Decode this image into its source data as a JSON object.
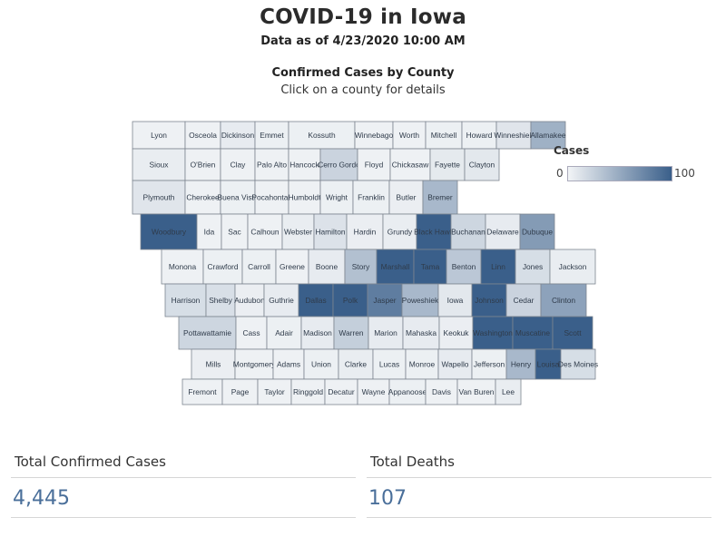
{
  "header": {
    "title": "COVID-19 in Iowa",
    "as_of": "Data as of 4/23/2020 10:00 AM"
  },
  "map": {
    "title": "Confirmed Cases by County",
    "subtitle": "Click on a county for details",
    "legend": {
      "title": "Cases",
      "min_label": "0",
      "max_label": "100",
      "scale_max": 100,
      "color_low": "#f2f4f6",
      "color_high": "#3a5f8a"
    },
    "rows": [
      [
        "Lyon",
        "Osceola",
        "Dickinson",
        "Emmet",
        "Kossuth",
        "Winnebago",
        "Worth",
        "Mitchell",
        "Howard",
        "Winneshiek",
        "Allamakee"
      ],
      [
        "Sioux",
        "O'Brien",
        "Clay",
        "Palo Alto",
        "Hancock",
        "Cerro Gordo",
        "Floyd",
        "Chickasaw",
        "Fayette",
        "Clayton"
      ],
      [
        "Plymouth",
        "Cherokee",
        "Buena Vista",
        "Pocahontas",
        "Humboldt",
        "Wright",
        "Franklin",
        "Butler",
        "Bremer"
      ],
      [
        "Woodbury",
        "Ida",
        "Sac",
        "Calhoun",
        "Webster",
        "Hamilton",
        "Hardin",
        "Grundy",
        "Black Hawk",
        "Buchanan",
        "Delaware",
        "Dubuque"
      ],
      [
        "Monona",
        "Crawford",
        "Carroll",
        "Greene",
        "Boone",
        "Story",
        "Marshall",
        "Tama",
        "Benton",
        "Linn",
        "Jones",
        "Jackson"
      ],
      [
        "Harrison",
        "Shelby",
        "Audubon",
        "Guthrie",
        "Dallas",
        "Polk",
        "Jasper",
        "Poweshiek",
        "Iowa",
        "Johnson",
        "Cedar",
        "Clinton"
      ],
      [
        "Pottawattamie",
        "Cass",
        "Adair",
        "Madison",
        "Warren",
        "Marion",
        "Mahaska",
        "Keokuk",
        "Washington",
        "Muscatine",
        "Scott"
      ],
      [
        "Mills",
        "Montgomery",
        "Adams",
        "Union",
        "Clarke",
        "Lucas",
        "Monroe",
        "Wapello",
        "Jefferson",
        "Henry",
        "Louisa",
        "Des Moines"
      ],
      [
        "Fremont",
        "Page",
        "Taylor",
        "Ringgold",
        "Decatur",
        "Wayne",
        "Appanoose",
        "Davis",
        "Van Buren",
        "Lee"
      ]
    ],
    "intensity": {
      "Lyon": 2,
      "Osceola": 2,
      "Dickinson": 6,
      "Emmet": 3,
      "Kossuth": 3,
      "Winnebago": 2,
      "Worth": 2,
      "Mitchell": 3,
      "Howard": 3,
      "Winneshiek": 10,
      "Allamakee": 45,
      "Sioux": 5,
      "O'Brien": 2,
      "Clay": 2,
      "Palo Alto": 2,
      "Hancock": 2,
      "Cerro Gordo": 22,
      "Floyd": 2,
      "Chickasaw": 2,
      "Fayette": 7,
      "Clayton": 8,
      "Plymouth": 10,
      "Cherokee": 2,
      "Buena Vista": 3,
      "Pocahontas": 2,
      "Humboldt": 2,
      "Wright": 3,
      "Franklin": 3,
      "Butler": 4,
      "Bremer": 40,
      "Woodbury": 100,
      "Ida": 2,
      "Sac": 2,
      "Calhoun": 2,
      "Webster": 5,
      "Hamilton": 12,
      "Hardin": 4,
      "Grundy": 5,
      "Black Hawk": 100,
      "Buchanan": 20,
      "Delaware": 6,
      "Dubuque": 60,
      "Monona": 2,
      "Crawford": 3,
      "Carroll": 3,
      "Greene": 2,
      "Boone": 6,
      "Story": 35,
      "Marshall": 100,
      "Tama": 100,
      "Benton": 30,
      "Linn": 100,
      "Jones": 15,
      "Jackson": 5,
      "Harrison": 15,
      "Shelby": 14,
      "Audubon": 4,
      "Guthrie": 6,
      "Dallas": 100,
      "Polk": 100,
      "Jasper": 80,
      "Poweshiek": 40,
      "Iowa": 8,
      "Johnson": 100,
      "Cedar": 22,
      "Clinton": 55,
      "Pottawattamie": 20,
      "Cass": 2,
      "Adair": 3,
      "Madison": 6,
      "Warren": 25,
      "Marion": 6,
      "Mahaska": 6,
      "Keokuk": 4,
      "Washington": 100,
      "Muscatine": 100,
      "Scott": 100,
      "Mills": 4,
      "Montgomery": 2,
      "Adams": 2,
      "Union": 3,
      "Clarke": 5,
      "Lucas": 3,
      "Monroe": 3,
      "Wapello": 6,
      "Jefferson": 3,
      "Henry": 40,
      "Louisa": 100,
      "Des Moines": 15,
      "Fremont": 2,
      "Page": 2,
      "Taylor": 2,
      "Ringgold": 2,
      "Decatur": 2,
      "Wayne": 2,
      "Appanoose": 3,
      "Davis": 2,
      "Van Buren": 2,
      "Lee": 5
    }
  },
  "stats": {
    "cases_label": "Total Confirmed Cases",
    "cases_value": "4,445",
    "deaths_label": "Total Deaths",
    "deaths_value": "107"
  }
}
